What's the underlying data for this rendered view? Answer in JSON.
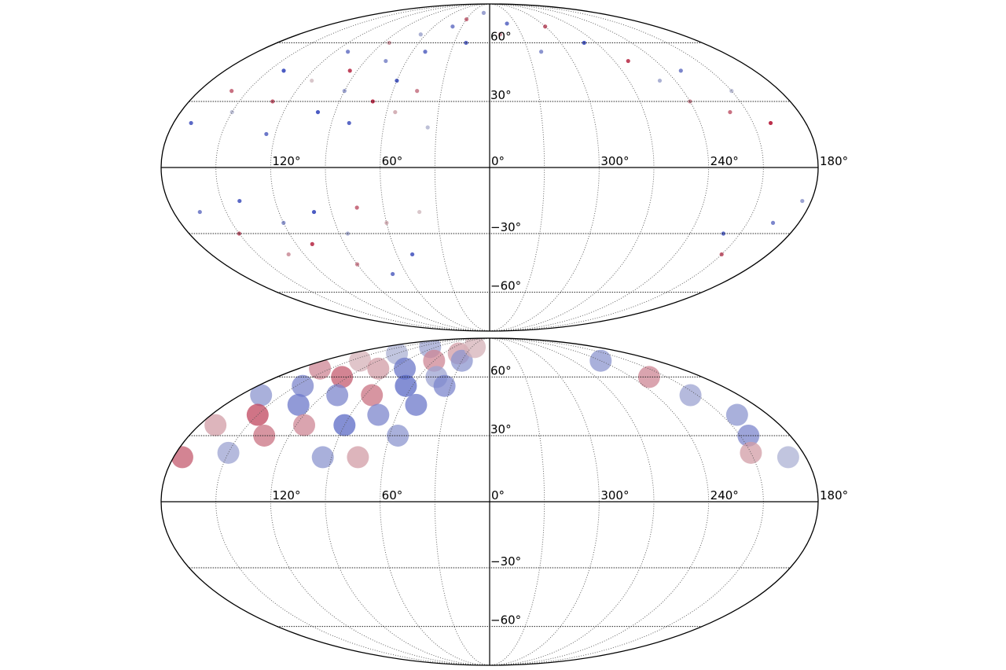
{
  "chart_data": [
    {
      "type": "scatter",
      "projection": "mollweide",
      "colormap": "coolwarm",
      "grid": true,
      "xgrid": [
        0,
        30,
        60,
        90,
        120,
        150,
        210,
        240,
        270,
        300,
        330
      ],
      "ygrid": [
        -60,
        -30,
        0,
        30,
        60
      ],
      "xticks": [
        {
          "value": 120,
          "label": "120°"
        },
        {
          "value": 60,
          "label": "60°"
        },
        {
          "value": 0,
          "label": "0°"
        },
        {
          "value": 300,
          "label": "300°"
        },
        {
          "value": 240,
          "label": "240°"
        },
        {
          "value": 180,
          "label": "180°"
        }
      ],
      "yticks": [
        {
          "value": 60,
          "label": "60°"
        },
        {
          "value": 30,
          "label": "30°"
        },
        {
          "value": -30,
          "label": "−30°"
        },
        {
          "value": -60,
          "label": "−60°"
        }
      ],
      "x": [
        170,
        160,
        150,
        140,
        130,
        125,
        115,
        110,
        100,
        95,
        90,
        85,
        80,
        75,
        70,
        65,
        60,
        55,
        50,
        45,
        40,
        35,
        30,
        20,
        10,
        350,
        340,
        320,
        300,
        280,
        260,
        250,
        240,
        230,
        220,
        210,
        200,
        165,
        150,
        140,
        130,
        120,
        110,
        100,
        90,
        85,
        75,
        70,
        60,
        50,
        40,
        195,
        210,
        220,
        185
      ],
      "y": [
        20,
        35,
        25,
        45,
        30,
        15,
        40,
        55,
        25,
        45,
        35,
        60,
        20,
        50,
        30,
        65,
        40,
        25,
        55,
        35,
        70,
        18,
        75,
        60,
        80,
        65,
        72,
        55,
        70,
        60,
        50,
        40,
        30,
        45,
        25,
        35,
        20,
        -20,
        -30,
        -15,
        -40,
        -25,
        -35,
        -20,
        -45,
        -30,
        -18,
        -50,
        -25,
        -40,
        -20,
        -25,
        -40,
        -30,
        -15
      ],
      "values": [
        -0.8,
        0.5,
        -0.2,
        -0.9,
        0.6,
        -0.7,
        0.1,
        -0.6,
        -0.9,
        0.7,
        -0.4,
        0.3,
        -0.8,
        -0.5,
        0.8,
        -0.3,
        -0.9,
        0.2,
        -0.7,
        0.4,
        -0.6,
        -0.2,
        0.5,
        -0.8,
        -0.4,
        0.3,
        -0.7,
        -0.5,
        0.6,
        -0.9,
        0.7,
        -0.3,
        0.4,
        -0.6,
        0.5,
        -0.2,
        0.8,
        -0.6,
        0.6,
        -0.8,
        0.3,
        -0.5,
        0.7,
        -0.9,
        0.4,
        -0.3,
        0.5,
        -0.7,
        0.2,
        -0.8,
        0.1,
        -0.6,
        0.6,
        -0.8,
        -0.4
      ]
    },
    {
      "type": "density",
      "projection": "mollweide",
      "colormap": "coolwarm",
      "grid": true,
      "xgrid": [
        0,
        30,
        60,
        90,
        120,
        150,
        210,
        240,
        270,
        300,
        330
      ],
      "ygrid": [
        -60,
        -30,
        0,
        30,
        60
      ],
      "xticks": [
        {
          "value": 120,
          "label": "120°"
        },
        {
          "value": 60,
          "label": "60°"
        },
        {
          "value": 0,
          "label": "0°"
        },
        {
          "value": 300,
          "label": "300°"
        },
        {
          "value": 240,
          "label": "240°"
        },
        {
          "value": 180,
          "label": "180°"
        }
      ],
      "yticks": [
        {
          "value": 60,
          "label": "60°"
        },
        {
          "value": 30,
          "label": "30°"
        },
        {
          "value": -30,
          "label": "−30°"
        },
        {
          "value": -60,
          "label": "−60°"
        }
      ],
      "x": [
        175,
        170,
        165,
        160,
        150,
        150,
        145,
        140,
        135,
        130,
        125,
        120,
        115,
        110,
        105,
        100,
        95,
        90,
        85,
        80,
        75,
        72,
        65,
        60,
        55,
        50,
        45,
        40,
        35,
        30,
        25,
        200,
        205,
        210,
        215,
        225,
        190,
        240
      ],
      "y": [
        20,
        35,
        50,
        65,
        22,
        40,
        55,
        70,
        30,
        45,
        60,
        75,
        35,
        50,
        65,
        80,
        20,
        35,
        50,
        65,
        20,
        40,
        55,
        70,
        30,
        45,
        60,
        75,
        55,
        70,
        80,
        40,
        30,
        22,
        50,
        60,
        20,
        70
      ],
      "values": [
        0.6,
        0.3,
        -0.5,
        0.4,
        -0.4,
        0.7,
        -0.6,
        0.2,
        0.5,
        -0.7,
        0.6,
        -0.3,
        0.4,
        -0.6,
        0.3,
        -0.4,
        -0.5,
        -0.8,
        0.5,
        -0.7,
        0.3,
        -0.6,
        -0.8,
        0.4,
        -0.5,
        -0.7,
        -0.4,
        0.3,
        -0.6,
        -0.5,
        0.2,
        -0.5,
        -0.6,
        0.3,
        -0.4,
        0.4,
        -0.3,
        -0.5
      ]
    }
  ]
}
